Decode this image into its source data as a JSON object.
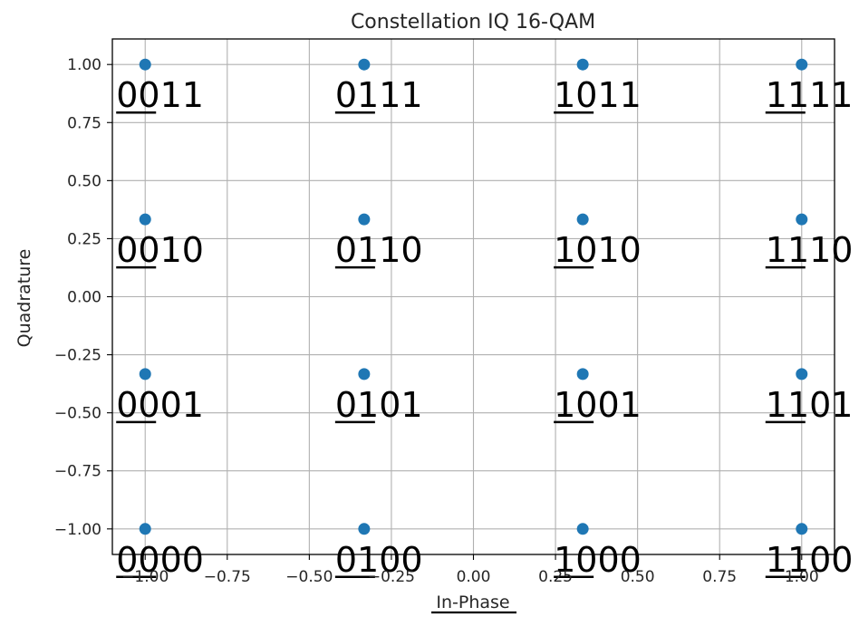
{
  "chart_data": {
    "type": "scatter",
    "title": "Constellation IQ 16-QAM",
    "xlabel": "In-Phase",
    "ylabel": "Quadrature",
    "xlim": [
      -1.1,
      1.1
    ],
    "ylim": [
      -1.11,
      1.11
    ],
    "xticks": [
      "−1.00",
      "−0.75",
      "−0.50",
      "−0.25",
      "0.00",
      "0.25",
      "0.50",
      "0.75",
      "1.00"
    ],
    "yticks": [
      "−1.00",
      "−0.75",
      "−0.50",
      "−0.25",
      "0.00",
      "0.25",
      "0.50",
      "0.75",
      "1.00"
    ],
    "grid": true,
    "marker_color": "#1f77b4",
    "points": [
      {
        "x": -1.0,
        "y": 1.0,
        "label": "0011"
      },
      {
        "x": -0.333,
        "y": 1.0,
        "label": "0111"
      },
      {
        "x": 0.333,
        "y": 1.0,
        "label": "1011"
      },
      {
        "x": 1.0,
        "y": 1.0,
        "label": "1111"
      },
      {
        "x": -1.0,
        "y": 0.333,
        "label": "0010"
      },
      {
        "x": -0.333,
        "y": 0.333,
        "label": "0110"
      },
      {
        "x": 0.333,
        "y": 0.333,
        "label": "1010"
      },
      {
        "x": 1.0,
        "y": 0.333,
        "label": "1110"
      },
      {
        "x": -1.0,
        "y": -0.333,
        "label": "0001"
      },
      {
        "x": -0.333,
        "y": -0.333,
        "label": "0101"
      },
      {
        "x": 0.333,
        "y": -0.333,
        "label": "1001"
      },
      {
        "x": 1.0,
        "y": -0.333,
        "label": "1101"
      },
      {
        "x": -1.0,
        "y": -1.0,
        "label": "0000"
      },
      {
        "x": -0.333,
        "y": -1.0,
        "label": "0100"
      },
      {
        "x": 0.333,
        "y": -1.0,
        "label": "1000"
      },
      {
        "x": 1.0,
        "y": -1.0,
        "label": "1100"
      }
    ]
  }
}
